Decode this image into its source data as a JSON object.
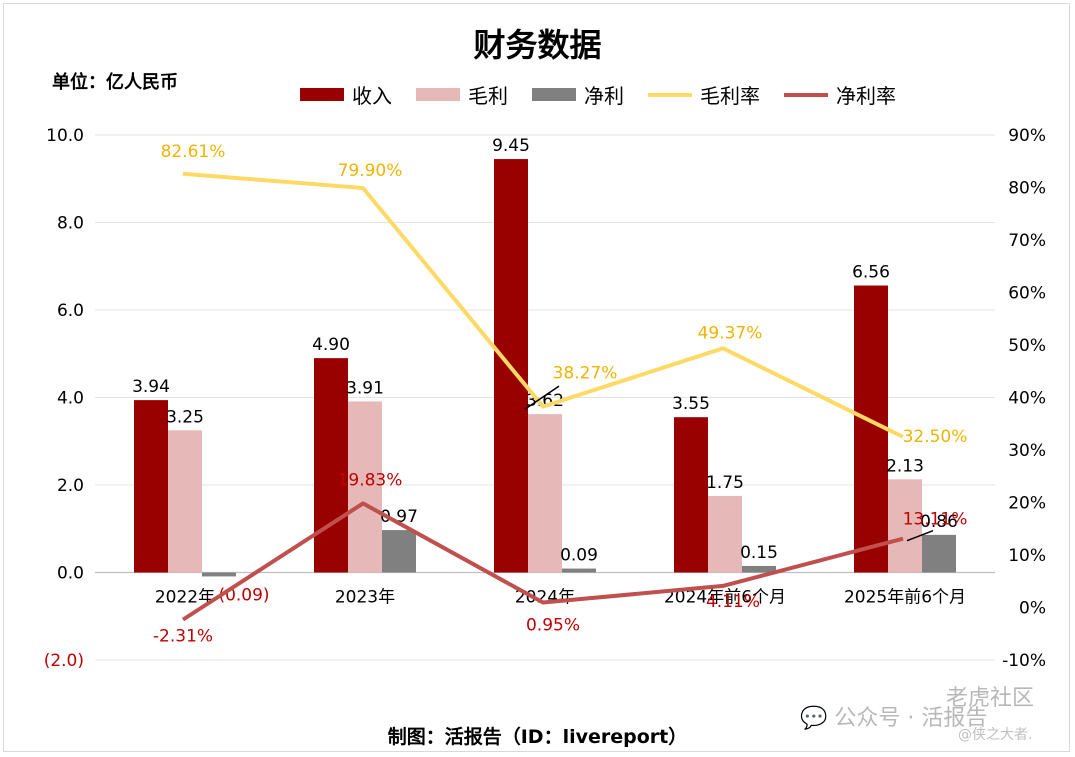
{
  "chart_data": {
    "type": "bar",
    "title": "财务数据",
    "unit_label": "单位：亿人民币",
    "footer": "制图：活报告（ID：livereport）",
    "categories": [
      "2022年",
      "2023年",
      "2024年",
      "2024年前6个月",
      "2025年前6个月"
    ],
    "series": [
      {
        "name": "收入",
        "type": "bar",
        "axis": "left",
        "color": "#990000",
        "values": [
          3.94,
          4.9,
          9.45,
          3.55,
          6.56
        ],
        "labels": [
          "3.94",
          "4.90",
          "9.45",
          "3.55",
          "6.56"
        ]
      },
      {
        "name": "毛利",
        "type": "bar",
        "axis": "left",
        "color": "#e6b8b7",
        "values": [
          3.25,
          3.91,
          3.62,
          1.75,
          2.13
        ],
        "labels": [
          "3.25",
          "3.91",
          "3.62",
          "1.75",
          "2.13"
        ]
      },
      {
        "name": "净利",
        "type": "bar",
        "axis": "left",
        "color": "#808080",
        "values": [
          -0.09,
          0.97,
          0.09,
          0.15,
          0.86
        ],
        "labels": [
          "(0.09)",
          "0.97",
          "0.09",
          "0.15",
          "0.86"
        ]
      },
      {
        "name": "毛利率",
        "type": "line",
        "axis": "right",
        "color": "#ffd966",
        "label_color": "#f0b400",
        "values": [
          82.61,
          79.9,
          38.27,
          49.37,
          32.5
        ],
        "labels": [
          "82.61%",
          "79.90%",
          "38.27%",
          "49.37%",
          "32.50%"
        ]
      },
      {
        "name": "净利率",
        "type": "line",
        "axis": "right",
        "color": "#c0504d",
        "label_color": "#c00000",
        "values": [
          -2.31,
          19.83,
          0.95,
          4.11,
          13.11
        ],
        "labels": [
          "-2.31%",
          "19.83%",
          "0.95%",
          "4.11%",
          "13.11%"
        ]
      }
    ],
    "left_axis": {
      "min": -2,
      "max": 10,
      "ticks": [
        -2,
        0,
        2,
        4,
        6,
        8,
        10
      ],
      "tick_labels": [
        "(2.0)",
        "0.0",
        "2.0",
        "4.0",
        "6.0",
        "8.0",
        "10.0"
      ]
    },
    "right_axis": {
      "min": -10,
      "max": 90,
      "ticks": [
        -10,
        0,
        10,
        20,
        30,
        40,
        50,
        60,
        70,
        80,
        90
      ],
      "tick_labels": [
        "-10%",
        "0%",
        "10%",
        "20%",
        "30%",
        "40%",
        "50%",
        "60%",
        "70%",
        "80%",
        "90%"
      ]
    },
    "grid": true,
    "legend_position": "top"
  },
  "watermark": {
    "wechat": "公众号 · 活报告",
    "community": "老虎社区",
    "author": "@侠之大者."
  }
}
